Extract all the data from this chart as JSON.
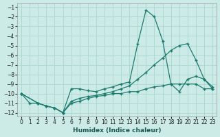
{
  "xlabel": "Humidex (Indice chaleur)",
  "background_color": "#cceae6",
  "grid_color": "#aad4d0",
  "line_color": "#1a7a6e",
  "xlim_min": -0.5,
  "xlim_max": 23.5,
  "ylim_min": -12.4,
  "ylim_max": -0.6,
  "xticks": [
    0,
    1,
    2,
    3,
    4,
    5,
    6,
    7,
    8,
    9,
    10,
    11,
    12,
    13,
    14,
    15,
    16,
    17,
    18,
    19,
    20,
    21,
    22,
    23
  ],
  "yticks": [
    -12,
    -11,
    -10,
    -9,
    -8,
    -7,
    -6,
    -5,
    -4,
    -3,
    -2,
    -1
  ],
  "line1_x": [
    0,
    1,
    2,
    3,
    4,
    5,
    6,
    7,
    8,
    9,
    10,
    11,
    12,
    13,
    14,
    15,
    16,
    17,
    18,
    19,
    20,
    21,
    22,
    23
  ],
  "line1_y": [
    -10.0,
    -11.0,
    -11.0,
    -11.3,
    -11.5,
    -12.0,
    -9.5,
    -9.5,
    -9.7,
    -9.8,
    -9.5,
    -9.3,
    -9.0,
    -8.8,
    -4.8,
    -1.3,
    -2.0,
    -4.5,
    -9.0,
    -9.8,
    -8.5,
    -8.2,
    -8.5,
    -9.3
  ],
  "line2_x": [
    0,
    2,
    3,
    4,
    5,
    6,
    7,
    8,
    9,
    10,
    11,
    12,
    13,
    14,
    15,
    16,
    17,
    18,
    19,
    20,
    21,
    22,
    23
  ],
  "line2_y": [
    -10.0,
    -11.0,
    -11.3,
    -11.5,
    -12.0,
    -10.8,
    -10.5,
    -10.3,
    -10.2,
    -10.0,
    -9.8,
    -9.5,
    -9.2,
    -8.5,
    -7.8,
    -7.0,
    -6.3,
    -5.5,
    -5.0,
    -4.8,
    -6.5,
    -8.5,
    -9.5
  ],
  "line3_x": [
    0,
    2,
    3,
    4,
    5,
    6,
    7,
    8,
    9,
    10,
    11,
    12,
    13,
    14,
    15,
    16,
    17,
    18,
    19,
    20,
    21,
    22,
    23
  ],
  "line3_y": [
    -10.0,
    -11.0,
    -11.3,
    -11.5,
    -12.0,
    -11.0,
    -10.8,
    -10.5,
    -10.3,
    -10.2,
    -10.0,
    -10.0,
    -9.8,
    -9.8,
    -9.5,
    -9.3,
    -9.2,
    -9.0,
    -9.0,
    -9.0,
    -9.0,
    -9.5,
    -9.5
  ]
}
